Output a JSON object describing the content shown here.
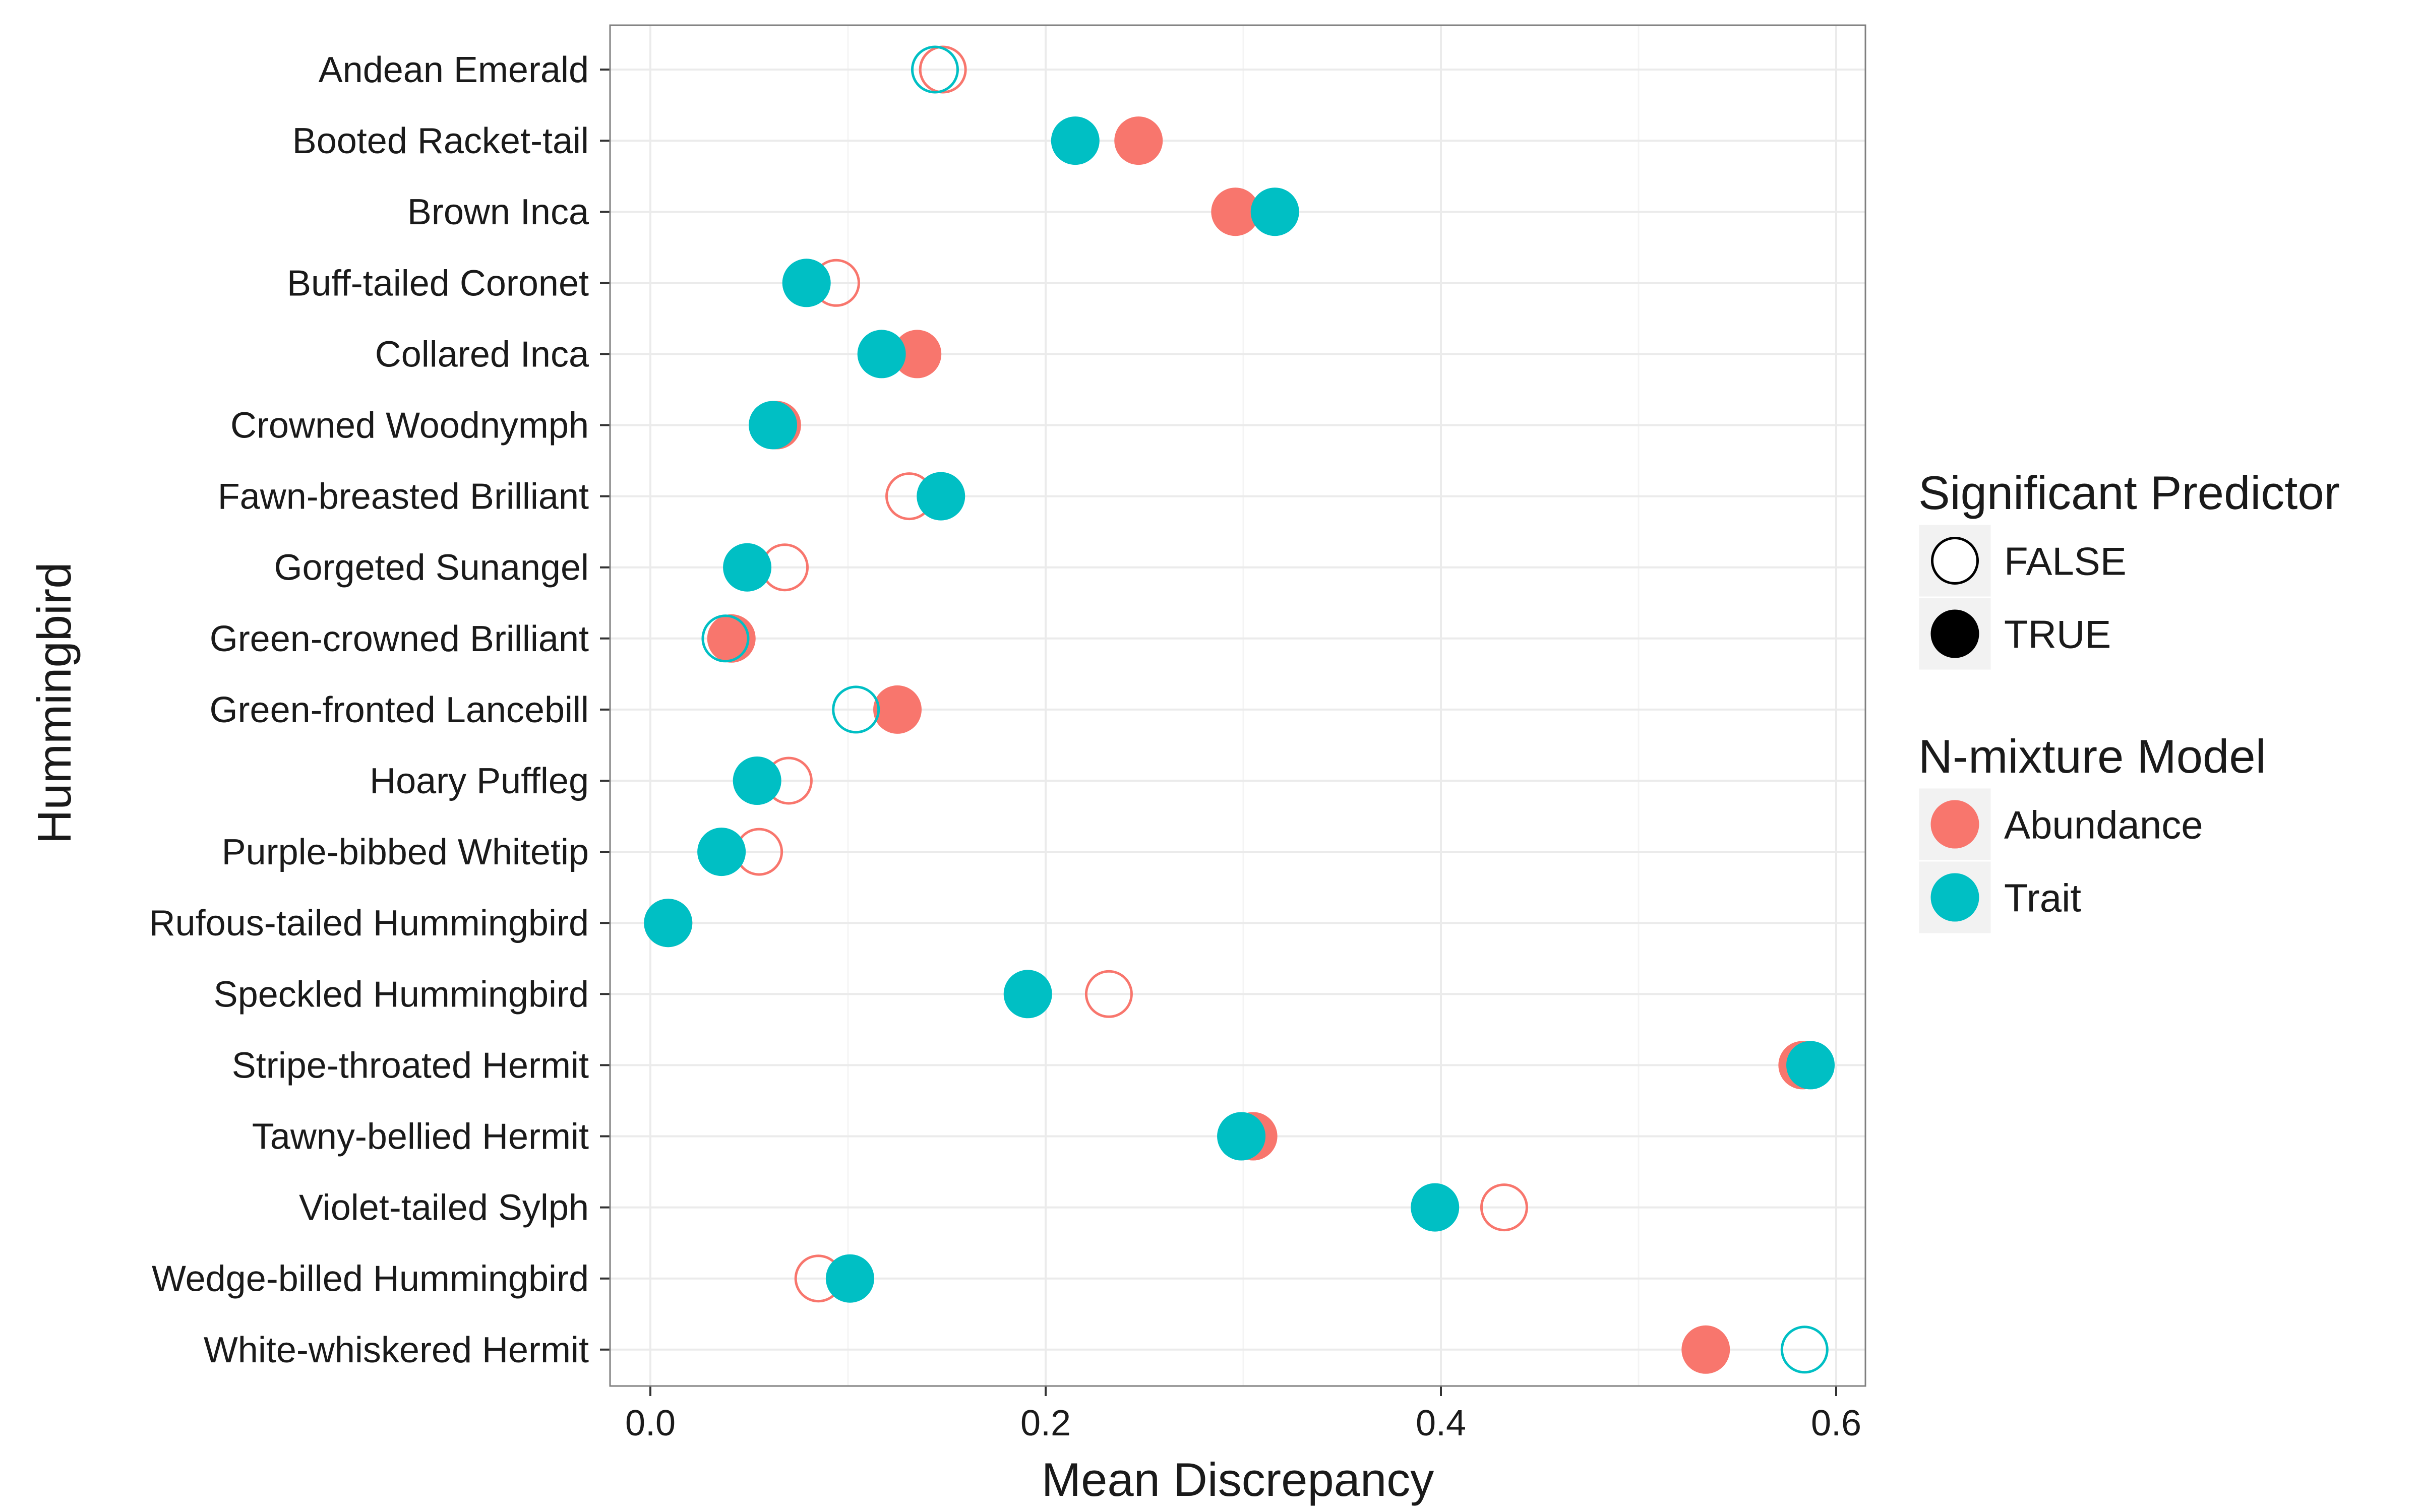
{
  "colors": {
    "abundance": "#F8766D",
    "trait": "#00BFC4",
    "legend_key": "#000000",
    "grid_major": "#EBEBEB",
    "grid_minor": "#F4F4F4",
    "panel_border": "#7F7F7F"
  },
  "chart_data": {
    "type": "scatter",
    "xlabel": "Mean Discrepancy",
    "ylabel": "Hummingbird",
    "xlim": [
      -0.03,
      0.61
    ],
    "x_ticks": [
      0.0,
      0.2,
      0.4,
      0.6
    ],
    "x_tick_labels": [
      "0.0",
      "0.2",
      "0.4",
      "0.6"
    ],
    "grid": true,
    "categories": [
      "Andean Emerald",
      "Booted Racket-tail",
      "Brown Inca",
      "Buff-tailed Coronet",
      "Collared Inca",
      "Crowned Woodnymph",
      "Fawn-breasted Brilliant",
      "Gorgeted Sunangel",
      "Green-crowned Brilliant",
      "Green-fronted Lancebill",
      "Hoary Puffleg",
      "Purple-bibbed Whitetip",
      "Rufous-tailed Hummingbird",
      "Speckled Hummingbird",
      "Stripe-throated Hermit",
      "Tawny-bellied Hermit",
      "Violet-tailed Sylph",
      "Wedge-billed Hummingbird",
      "White-whiskered Hermit"
    ],
    "series": [
      {
        "name": "Abundance",
        "values": [
          0.148,
          0.247,
          0.296,
          0.094,
          0.135,
          0.064,
          0.131,
          0.068,
          0.041,
          0.125,
          0.07,
          0.055,
          0.009,
          0.232,
          0.583,
          0.305,
          0.432,
          0.085,
          0.534
        ],
        "significant": [
          false,
          true,
          true,
          false,
          true,
          true,
          false,
          false,
          true,
          true,
          false,
          false,
          true,
          false,
          true,
          true,
          false,
          false,
          true
        ]
      },
      {
        "name": "Trait",
        "values": [
          0.144,
          0.215,
          0.316,
          0.079,
          0.117,
          0.062,
          0.147,
          0.049,
          0.038,
          0.104,
          0.054,
          0.036,
          0.009,
          0.191,
          0.587,
          0.299,
          0.397,
          0.101,
          0.584
        ],
        "significant": [
          false,
          true,
          true,
          true,
          true,
          true,
          true,
          true,
          false,
          false,
          true,
          true,
          true,
          true,
          true,
          true,
          true,
          true,
          false
        ]
      }
    ],
    "legends": [
      {
        "title": "Significant Predictor",
        "entries": [
          {
            "label": "FALSE",
            "filled": false
          },
          {
            "label": "TRUE",
            "filled": true
          }
        ]
      },
      {
        "title": "N-mixture Model",
        "entries": [
          {
            "label": "Abundance",
            "series": "Abundance"
          },
          {
            "label": "Trait",
            "series": "Trait"
          }
        ]
      }
    ],
    "legend_placement": "right"
  }
}
